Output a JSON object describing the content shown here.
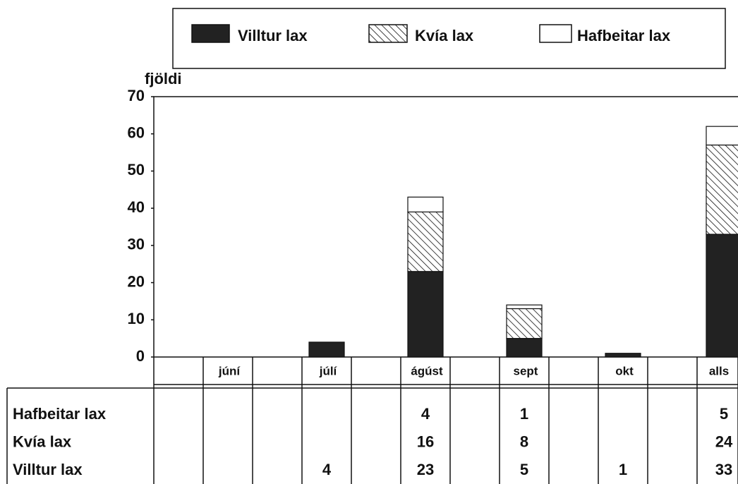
{
  "chart_data": {
    "type": "bar",
    "stacked": true,
    "ylabel": "fjöldi",
    "categories": [
      "júní",
      "júlí",
      "ágúst",
      "sept",
      "okt",
      "alls"
    ],
    "series": [
      {
        "name": "Villtur lax",
        "color": "#222222",
        "values": [
          null,
          4,
          23,
          5,
          1,
          33
        ]
      },
      {
        "name": "Kvía lax",
        "color": "#000000",
        "hatched": true,
        "values": [
          null,
          null,
          16,
          8,
          null,
          24
        ]
      },
      {
        "name": "Hafbeitar lax",
        "color": "#ffffff",
        "values": [
          null,
          null,
          4,
          1,
          null,
          5
        ]
      }
    ],
    "ylim": [
      0,
      70
    ],
    "yticks": [
      0,
      10,
      20,
      30,
      40,
      50,
      60,
      70
    ],
    "legend": "top",
    "data_table": true
  }
}
